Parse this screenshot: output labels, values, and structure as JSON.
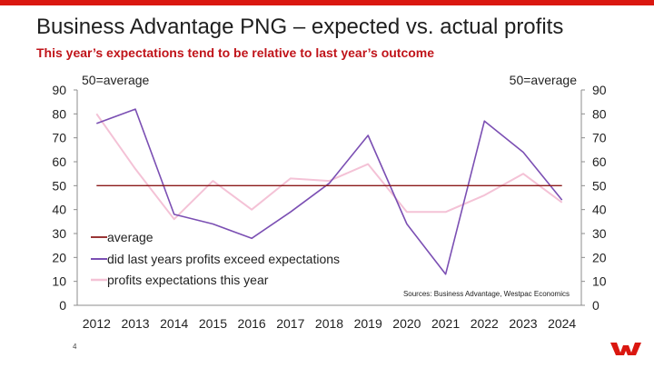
{
  "slide": {
    "title": "Business Advantage PNG – expected vs. actual profits",
    "subtitle": "This year’s expectations tend to be relative to last year’s outcome",
    "page_number": "4"
  },
  "colors": {
    "accent": "#da1710",
    "average": "#8b1a1a",
    "actual": "#7b4fb3",
    "expected": "#f4c2d6"
  },
  "icons": {
    "brand_logo": "westpac-w-logo"
  },
  "chart_data": {
    "type": "line",
    "categories": [
      "2012",
      "2013",
      "2014",
      "2015",
      "2016",
      "2017",
      "2018",
      "2019",
      "2020",
      "2021",
      "2022",
      "2023",
      "2024"
    ],
    "series": [
      {
        "name": "average",
        "values": [
          50,
          50,
          50,
          50,
          50,
          50,
          50,
          50,
          50,
          50,
          50,
          50,
          50
        ]
      },
      {
        "name": "did last years profits exceed expectations",
        "values": [
          76,
          82,
          38,
          34,
          28,
          39,
          51,
          71,
          34,
          13,
          77,
          64,
          44
        ]
      },
      {
        "name": "profits expectations this year",
        "values": [
          80,
          57,
          36,
          52,
          40,
          53,
          52,
          59,
          39,
          39,
          46,
          55,
          43
        ]
      }
    ],
    "ylim": [
      0,
      90
    ],
    "yticks": [
      0,
      10,
      20,
      30,
      40,
      50,
      60,
      70,
      80,
      90
    ],
    "left_axis_note": "50=average",
    "right_axis_note": "50=average",
    "source": "Sources: Business Advantage, Westpac Economics",
    "legend_position": "bottom-left",
    "grid": false
  }
}
